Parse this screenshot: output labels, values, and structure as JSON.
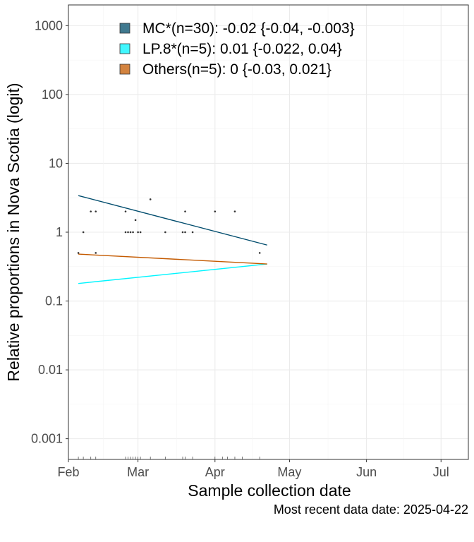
{
  "chart_data": {
    "type": "scatter",
    "title": "",
    "xlabel": "Sample collection date",
    "ylabel": "Relative proportions in Nova Scotia (logit)",
    "caption": "Most recent data date: 2025-04-22",
    "y_scale": "log",
    "ylim": [
      0.0005,
      2000
    ],
    "xlim": [
      "2025-02-01",
      "2025-07-12"
    ],
    "x_ticks": [
      {
        "date": "2025-02-01",
        "label": "Feb"
      },
      {
        "date": "2025-03-01",
        "label": "Mar"
      },
      {
        "date": "2025-04-01",
        "label": "Apr"
      },
      {
        "date": "2025-05-01",
        "label": "May"
      },
      {
        "date": "2025-06-01",
        "label": "Jun"
      },
      {
        "date": "2025-07-01",
        "label": "Jul"
      }
    ],
    "y_ticks": [
      {
        "value": 0.001,
        "label": "0.001"
      },
      {
        "value": 0.01,
        "label": "0.01"
      },
      {
        "value": 0.1,
        "label": "0.1"
      },
      {
        "value": 1,
        "label": "1"
      },
      {
        "value": 10,
        "label": "10"
      },
      {
        "value": 100,
        "label": "100"
      },
      {
        "value": 1000,
        "label": "1000"
      }
    ],
    "grid": true,
    "legend_position": "top",
    "series": [
      {
        "name": "MC*(n=30): -0.02 {-0.04, -0.003}",
        "color": "#004c6d",
        "legend_fill": "#40798f",
        "fit_line": [
          [
            "2025-02-05",
            3.4
          ],
          [
            "2025-04-22",
            0.65
          ]
        ]
      },
      {
        "name": "LP.8*(n=5): 0.01 {-0.022, 0.04}",
        "color": "#00f5ff",
        "legend_fill": "#40f7ff",
        "fit_line": [
          [
            "2025-02-05",
            0.18
          ],
          [
            "2025-04-22",
            0.345
          ]
        ]
      },
      {
        "name": "Others(n=5): 0 {-0.03, 0.021}",
        "color": "#c45a00",
        "legend_fill": "#d3833f",
        "fit_line": [
          [
            "2025-02-05",
            0.48
          ],
          [
            "2025-04-22",
            0.345
          ]
        ]
      }
    ],
    "points": [
      [
        "2025-02-05",
        0.5
      ],
      [
        "2025-02-07",
        1
      ],
      [
        "2025-02-10",
        2
      ],
      [
        "2025-02-12",
        2
      ],
      [
        "2025-02-12",
        0.5
      ],
      [
        "2025-02-24",
        2
      ],
      [
        "2025-02-24",
        1
      ],
      [
        "2025-02-25",
        1
      ],
      [
        "2025-02-26",
        1
      ],
      [
        "2025-02-27",
        1
      ],
      [
        "2025-02-28",
        1.5
      ],
      [
        "2025-03-01",
        1
      ],
      [
        "2025-03-02",
        1
      ],
      [
        "2025-03-06",
        3
      ],
      [
        "2025-03-12",
        1
      ],
      [
        "2025-03-19",
        1
      ],
      [
        "2025-03-20",
        1
      ],
      [
        "2025-03-20",
        2
      ],
      [
        "2025-03-23",
        1
      ],
      [
        "2025-04-01",
        2
      ],
      [
        "2025-04-09",
        2
      ],
      [
        "2025-04-19",
        0.5
      ]
    ],
    "rug_dates": [
      "2025-02-05",
      "2025-02-07",
      "2025-02-10",
      "2025-02-12",
      "2025-02-24",
      "2025-02-25",
      "2025-02-26",
      "2025-02-27",
      "2025-02-28",
      "2025-03-01",
      "2025-03-02",
      "2025-03-06",
      "2025-03-12",
      "2025-03-19",
      "2025-03-20",
      "2025-03-23",
      "2025-04-01",
      "2025-04-04",
      "2025-04-06",
      "2025-04-09",
      "2025-04-12",
      "2025-04-19"
    ]
  }
}
